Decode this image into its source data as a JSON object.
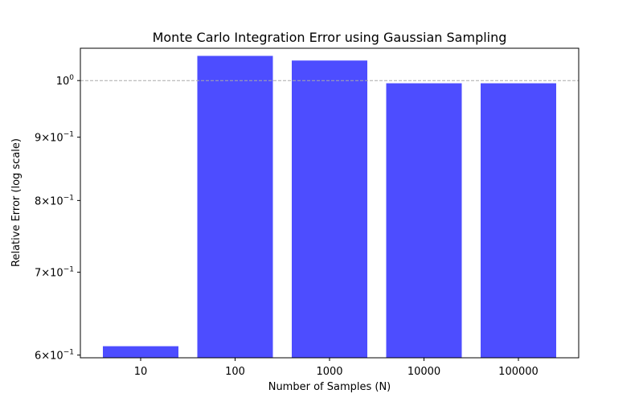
{
  "chart_data": {
    "type": "bar",
    "title": "Monte Carlo Integration Error using Gaussian Sampling",
    "xlabel": "Number of Samples (N)",
    "ylabel": "Relative Error (log scale)",
    "categories": [
      "10",
      "100",
      "1000",
      "10000",
      "100000"
    ],
    "values": [
      0.61,
      1.047,
      1.038,
      0.995,
      0.995
    ],
    "yscale": "log",
    "ylim": [
      0.597,
      1.062
    ],
    "yticks": [
      {
        "value": 0.6,
        "mantissa": "6",
        "op": "×",
        "base": "10",
        "exp": "−1"
      },
      {
        "value": 0.7,
        "mantissa": "7",
        "op": "×",
        "base": "10",
        "exp": "−1"
      },
      {
        "value": 0.8,
        "mantissa": "8",
        "op": "×",
        "base": "10",
        "exp": "−1"
      },
      {
        "value": 0.9,
        "mantissa": "9",
        "op": "×",
        "base": "10",
        "exp": "−1"
      },
      {
        "value": 1.0,
        "mantissa": "",
        "op": "",
        "base": "10",
        "exp": "0"
      }
    ],
    "reference_line": 1.0,
    "bar_color": "#4d4dff",
    "reference_line_color": "#aaaaaa",
    "grid": false,
    "legend": "none"
  }
}
